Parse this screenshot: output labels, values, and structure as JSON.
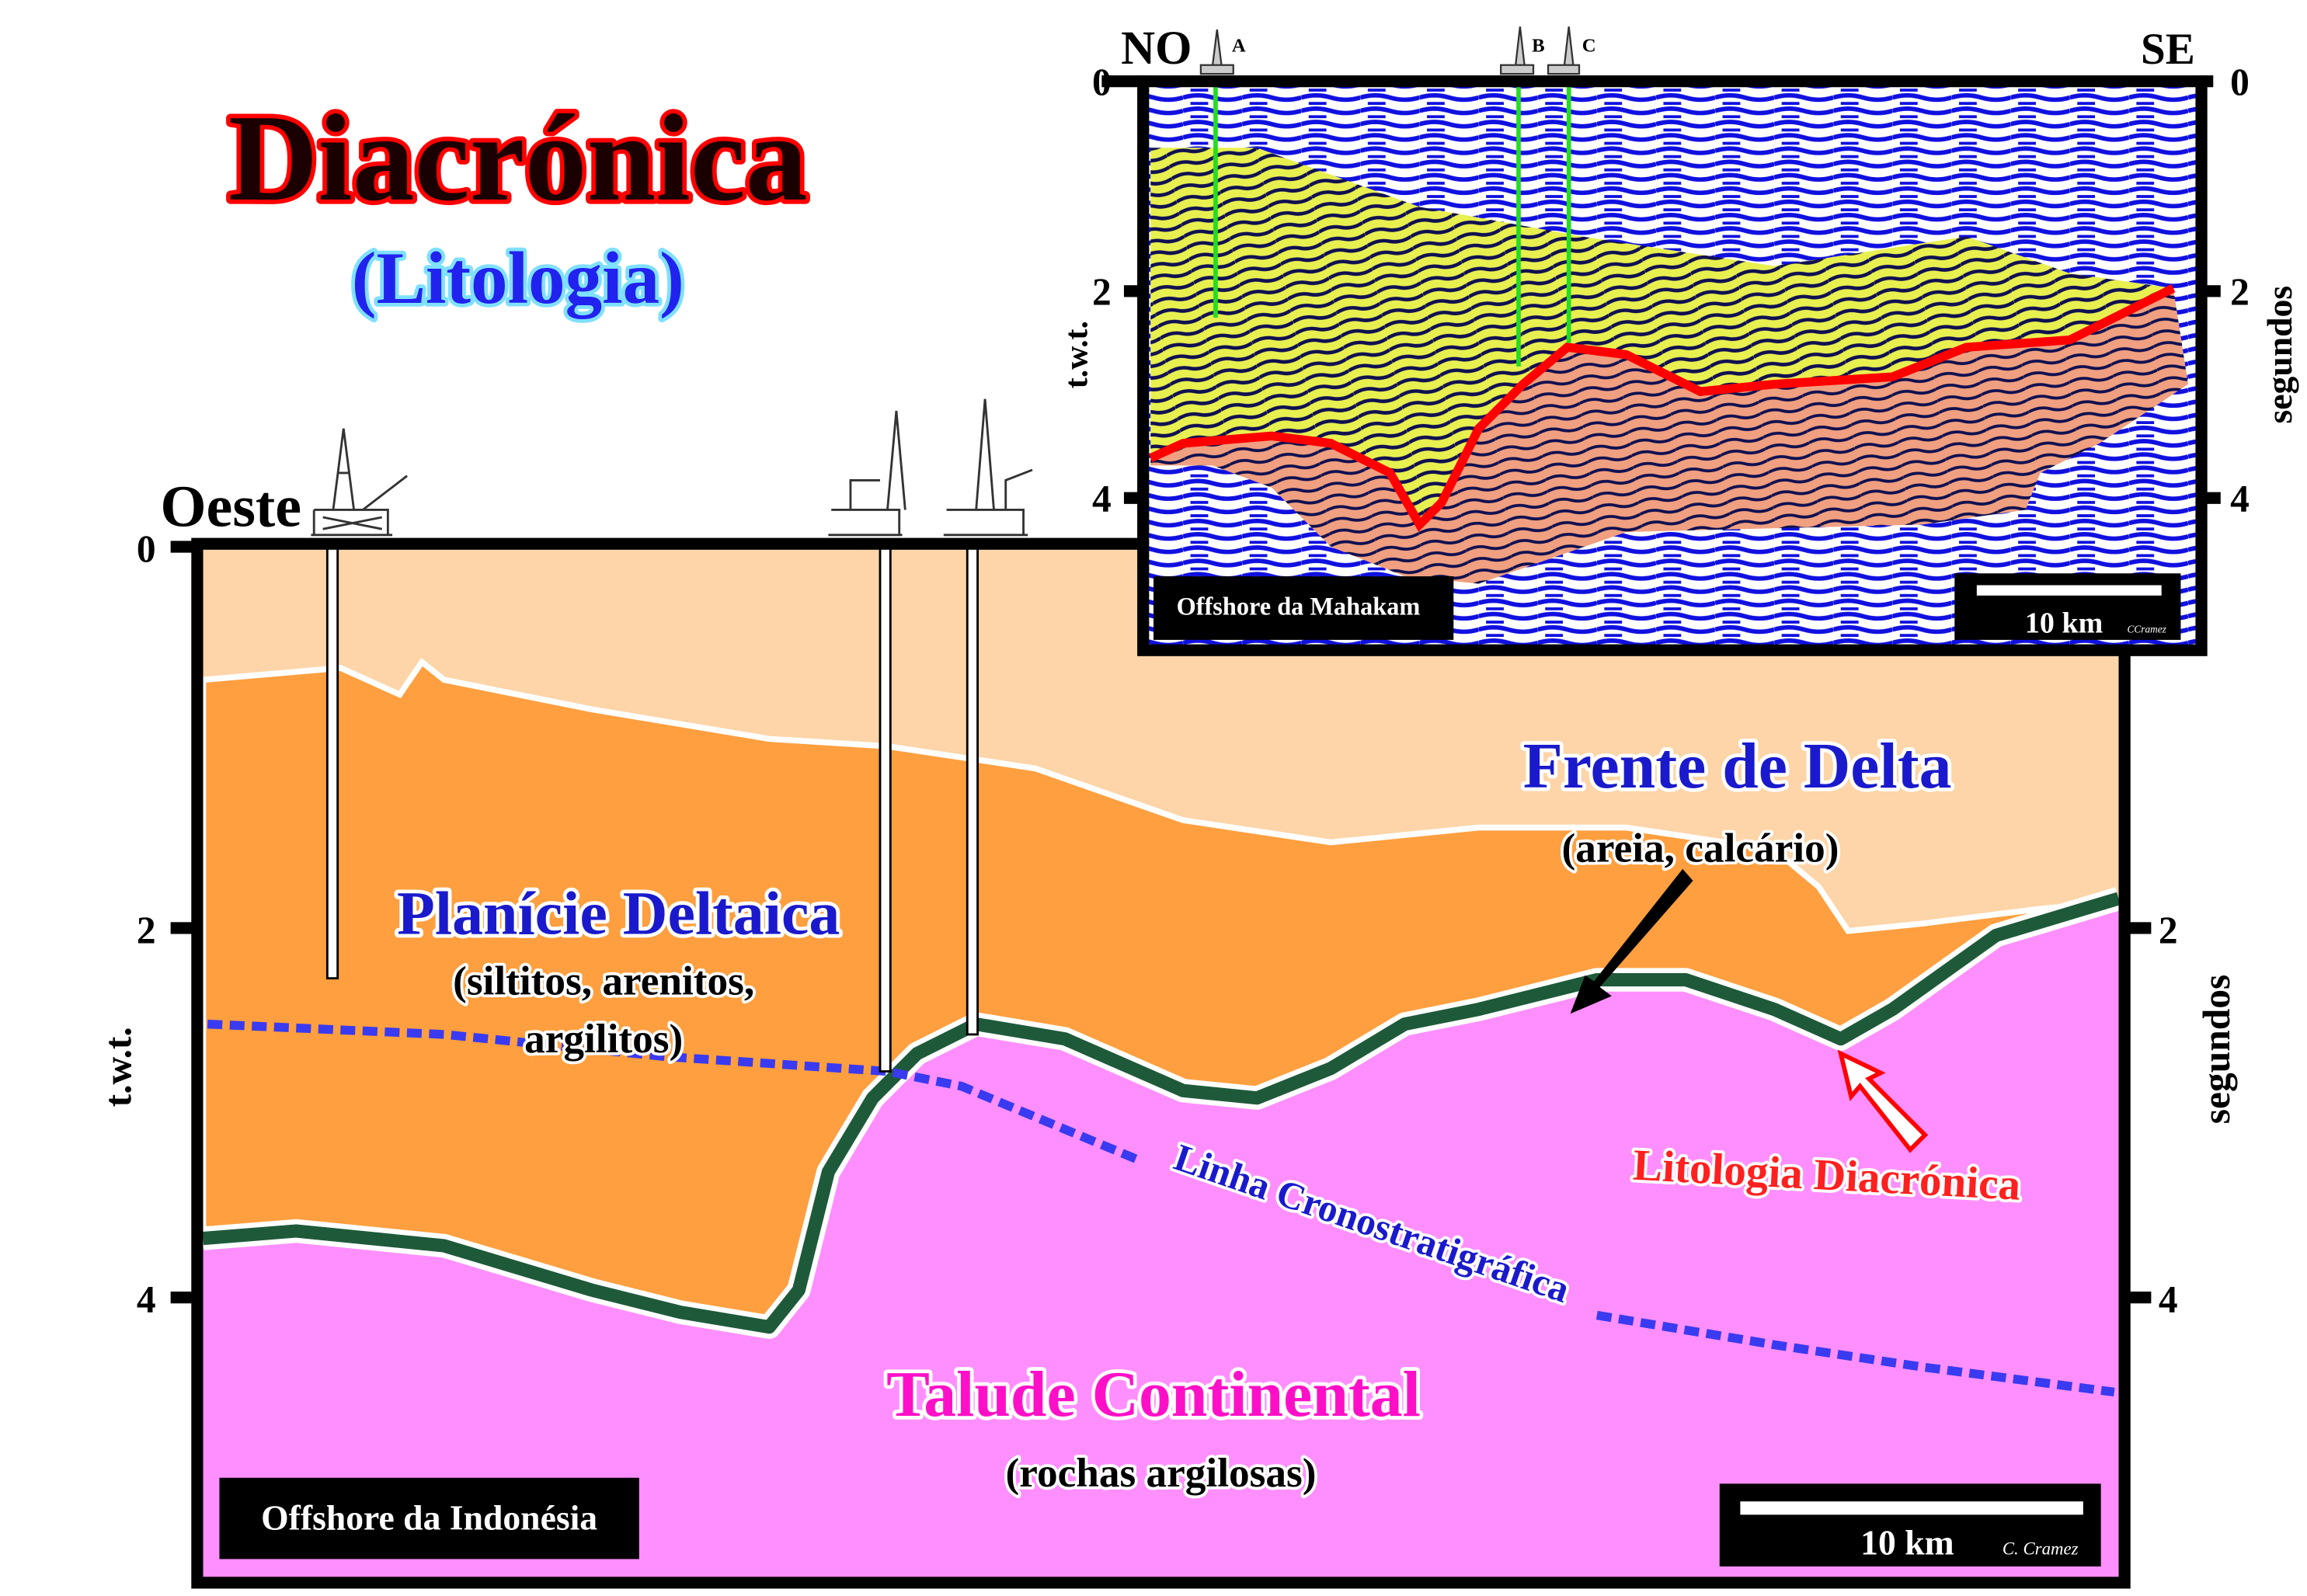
{
  "title": {
    "main": "Diacrónica",
    "sub": "(Litologia)"
  },
  "main_section": {
    "west_label": "Oeste",
    "y_axis_label": "t.w.t.",
    "y_axis_right_label": "segundos",
    "ticks_left": [
      "0",
      "2",
      "4"
    ],
    "ticks_right": [
      "2",
      "4"
    ],
    "labels": {
      "delta_plain": "Planície Deltaica",
      "delta_plain_sub1": "(siltitos, arenitos,",
      "delta_plain_sub2": "argilitos)",
      "delta_front": "Frente de Delta",
      "delta_front_sub": "(areia, calcário)",
      "slope": "Talude Continental",
      "slope_sub": "(rochas argilosas)",
      "chrono_line": "Linha Cronostratigráfica",
      "diachronic": "Litologia Diacrónica"
    },
    "location": "Offshore da Indonésia",
    "scale": "10 km",
    "author": "C. Cramez"
  },
  "inset": {
    "left_label": "NO",
    "right_label": "SE",
    "wells": [
      "A",
      "B",
      "C"
    ],
    "y_axis_label": "t.w.t.",
    "y_axis_right_label": "segundos",
    "ticks": [
      "0",
      "2",
      "4"
    ],
    "location": "Offshore da Mahakam",
    "scale": "10 km",
    "author": "CCramez"
  },
  "colors": {
    "peach": "#FDD5A8",
    "orange": "#FF9F3F",
    "pink": "#FF8FFF",
    "green_band": "#1E5A3A",
    "chrono_line": "#3A3AF0",
    "seismic_blue": "#1010E0",
    "seismic_yellow": "#E8F050",
    "seismic_orange": "#F0A080",
    "red_boundary": "#FF0000",
    "well_green": "#22DD22"
  }
}
